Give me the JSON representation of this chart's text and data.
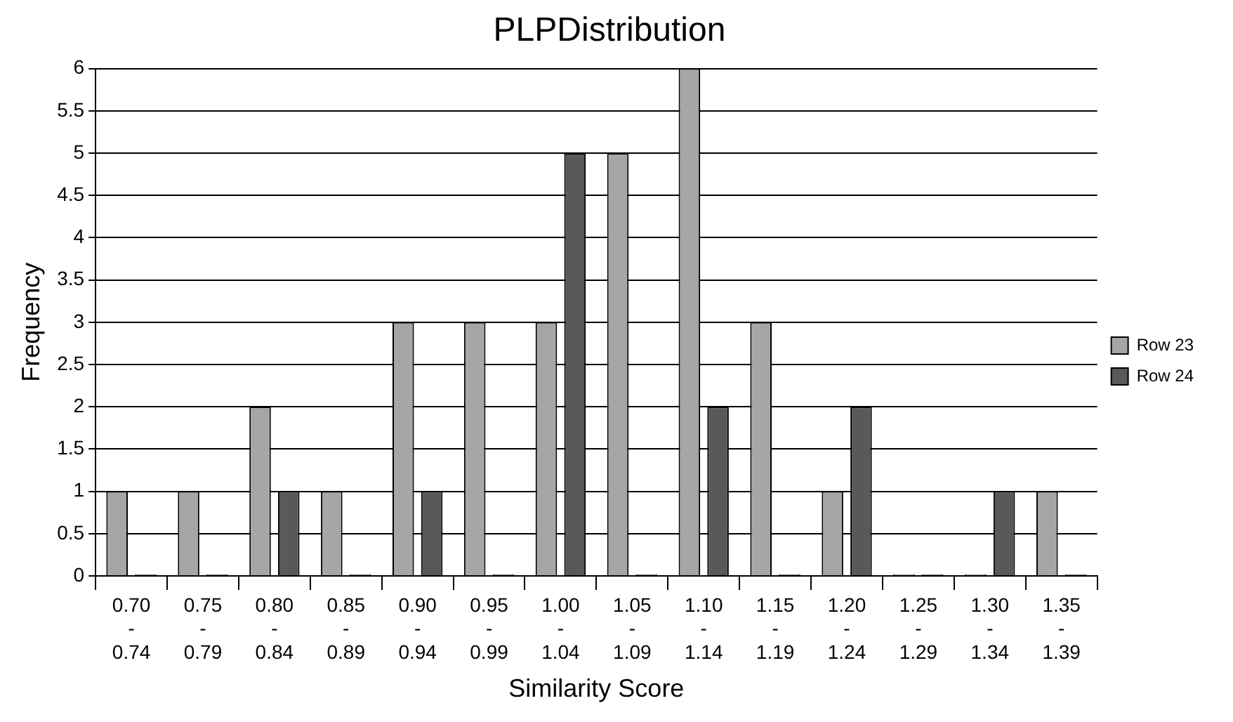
{
  "chart_data": {
    "type": "bar",
    "title": "PLPDistribution",
    "xlabel": "Similarity Score",
    "ylabel": "Frequency",
    "categories": [
      "0.70\n-\n0.74",
      "0.75\n-\n0.79",
      "0.80\n-\n0.84",
      "0.85\n-\n0.89",
      "0.90\n-\n0.94",
      "0.95\n-\n0.99",
      "1.00\n-\n1.04",
      "1.05\n-\n1.09",
      "1.10\n-\n1.14",
      "1.15\n-\n1.19",
      "1.20\n-\n1.24",
      "1.25\n-\n1.29",
      "1.30\n-\n1.34",
      "1.35\n-\n1.39"
    ],
    "series": [
      {
        "name": "Row 23",
        "color": "#a6a6a6",
        "values": [
          1,
          1,
          2,
          1,
          3,
          3,
          3,
          5,
          6,
          3,
          1,
          0,
          0,
          1
        ]
      },
      {
        "name": "Row 24",
        "color": "#595959",
        "values": [
          0,
          0,
          1,
          0,
          1,
          0,
          5,
          0,
          2,
          0,
          2,
          0,
          1,
          0
        ]
      }
    ],
    "ylim": [
      0,
      6
    ],
    "yticks": [
      0,
      0.5,
      1,
      1.5,
      2,
      2.5,
      3,
      3.5,
      4,
      4.5,
      5,
      5.5,
      6
    ],
    "grid": "y",
    "legend": "right"
  }
}
